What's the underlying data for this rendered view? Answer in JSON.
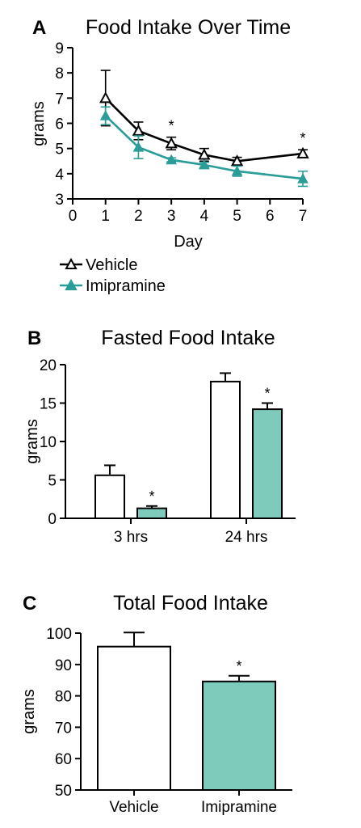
{
  "colors": {
    "vehicle": "#000000",
    "imipramine": "#2a9d98",
    "imipramine_bar": "#7ecbbb",
    "vehicle_bar": "#ffffff"
  },
  "chart_data": [
    {
      "panel": "A",
      "type": "line",
      "title": "Food Intake Over Time",
      "xlabel": "Day",
      "ylabel": "grams",
      "xlim": [
        0,
        7
      ],
      "ylim": [
        3,
        9
      ],
      "x_ticks": [
        "0",
        "1",
        "2",
        "3",
        "4",
        "5",
        "6",
        "7"
      ],
      "y_ticks": [
        "3",
        "4",
        "5",
        "6",
        "7",
        "8",
        "9"
      ],
      "x": [
        1,
        2,
        3,
        4,
        5,
        7
      ],
      "series": [
        {
          "name": "Vehicle",
          "marker": "open-triangle",
          "values": [
            7.0,
            5.7,
            5.2,
            4.75,
            4.5,
            4.8
          ],
          "errors": [
            1.1,
            0.35,
            0.25,
            0.25,
            0.15,
            0.15
          ]
        },
        {
          "name": "Imipramine",
          "marker": "filled-triangle",
          "values": [
            6.3,
            5.05,
            4.55,
            4.35,
            4.1,
            3.8
          ],
          "errors": [
            0.35,
            0.45,
            0.08,
            0.1,
            0.2,
            0.3
          ]
        }
      ],
      "significance": [
        {
          "x": 3,
          "label": "*"
        },
        {
          "x": 7,
          "label": "*"
        }
      ],
      "legend": [
        "Vehicle",
        "Imipramine"
      ],
      "legend_position": "below"
    },
    {
      "panel": "B",
      "type": "bar",
      "title": "Fasted Food Intake",
      "xlabel": "",
      "ylabel": "grams",
      "ylim": [
        0,
        20
      ],
      "y_ticks": [
        "0",
        "5",
        "10",
        "15",
        "20"
      ],
      "categories": [
        "3 hrs",
        "24 hrs"
      ],
      "series": [
        {
          "name": "Vehicle",
          "values": [
            5.6,
            17.8
          ],
          "errors": [
            1.3,
            1.1
          ]
        },
        {
          "name": "Imipramine",
          "values": [
            1.3,
            14.2
          ],
          "errors": [
            0.3,
            0.8
          ]
        }
      ],
      "significance": [
        {
          "category": 0,
          "series": 1,
          "label": "*"
        },
        {
          "category": 1,
          "series": 1,
          "label": "*"
        }
      ]
    },
    {
      "panel": "C",
      "type": "bar",
      "title": "Total Food Intake",
      "xlabel": "",
      "ylabel": "grams",
      "ylim": [
        50,
        100
      ],
      "y_ticks": [
        "50",
        "60",
        "70",
        "80",
        "90",
        "100"
      ],
      "categories": [
        "Vehicle",
        "Imipramine"
      ],
      "values": [
        95.7,
        84.6
      ],
      "errors": [
        4.5,
        1.8
      ],
      "significance": [
        {
          "category": 1,
          "label": "*"
        }
      ]
    }
  ]
}
